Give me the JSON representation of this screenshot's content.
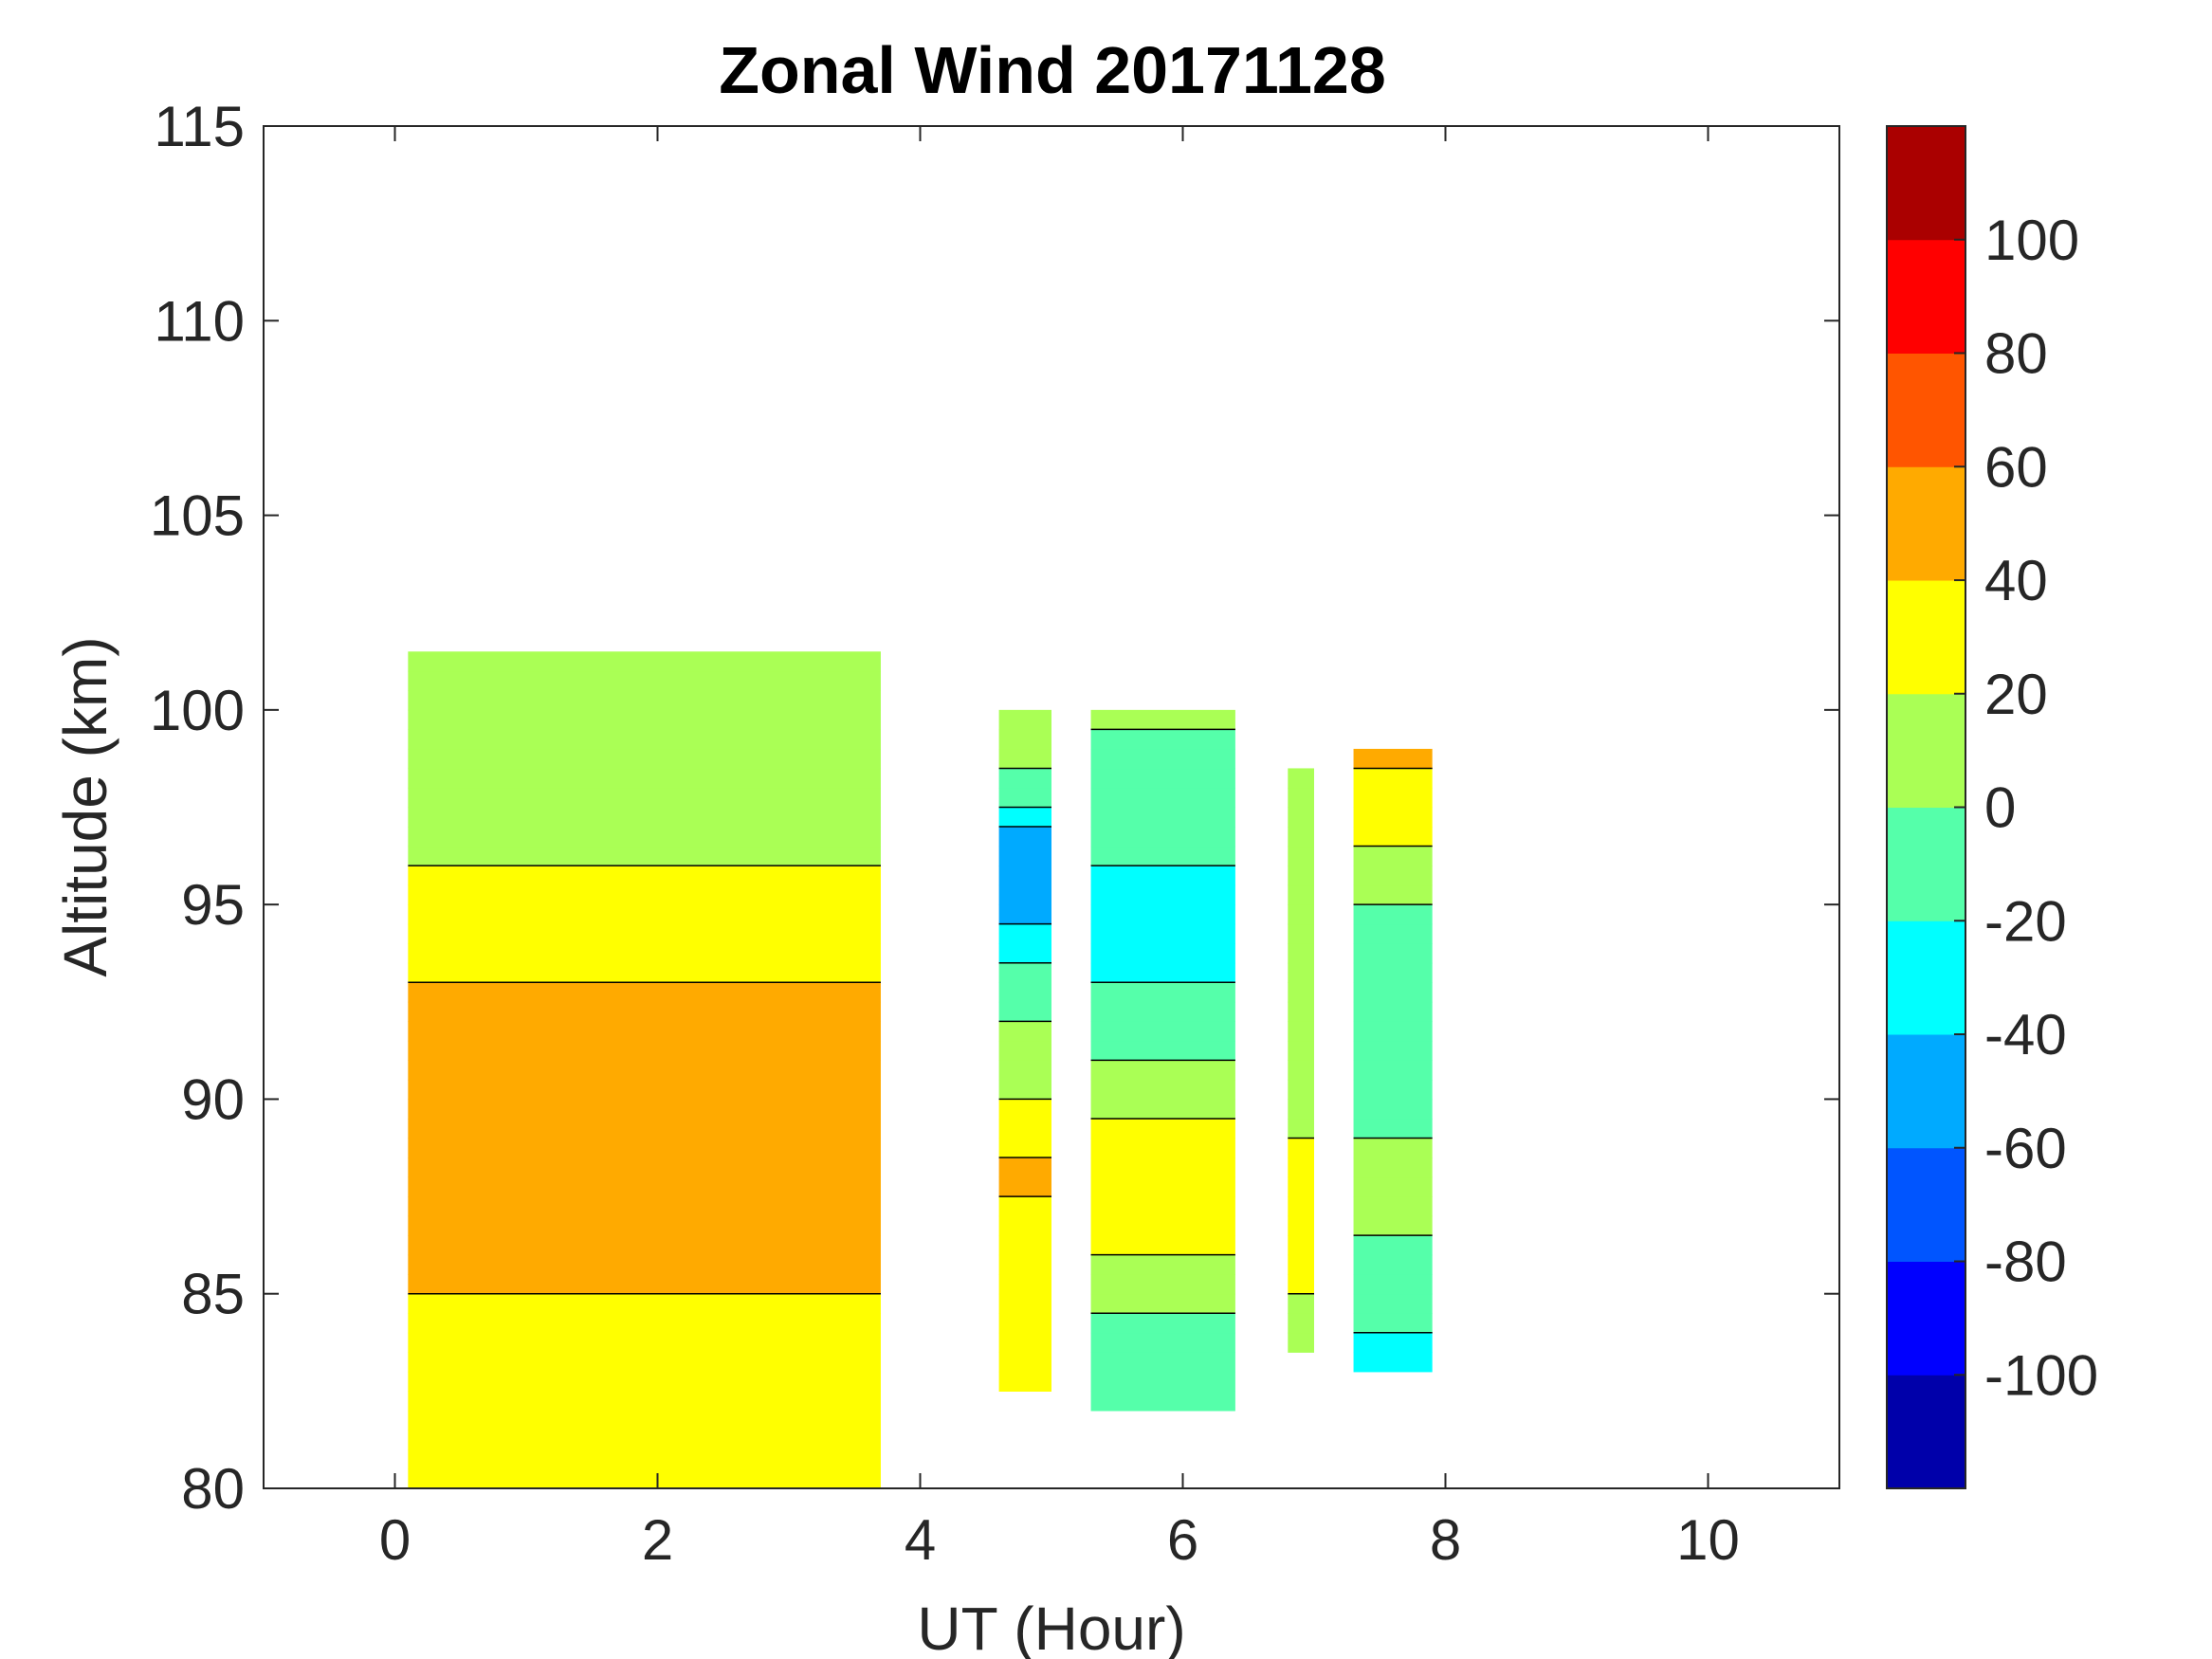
{
  "chart_data": {
    "type": "heatmap",
    "subtype": "filled-contour",
    "title": "Zonal Wind 20171128",
    "xlabel": "UT (Hour)",
    "ylabel": "Altitude (km)",
    "xlim": [
      -1,
      11
    ],
    "ylim": [
      80,
      115
    ],
    "xticks": [
      "0",
      "2",
      "4",
      "6",
      "8",
      "10"
    ],
    "yticks": [
      "80",
      "85",
      "90",
      "95",
      "100",
      "105",
      "110",
      "115"
    ],
    "colorbar": {
      "range": [
        -120,
        120
      ],
      "ticks": [
        "-100",
        "-80",
        "-60",
        "-40",
        "-20",
        "0",
        "20",
        "40",
        "60",
        "80",
        "100"
      ],
      "levels": [
        -120,
        -100,
        -80,
        -60,
        -40,
        -20,
        0,
        20,
        40,
        60,
        80,
        100,
        120
      ],
      "colors": [
        "#0000AA",
        "#0000FF",
        "#0055FF",
        "#00AAFF",
        "#00FFFF",
        "#55FFAA",
        "#AAFF55",
        "#FFFF00",
        "#FFAA00",
        "#FF5500",
        "#FF0000",
        "#AA0000"
      ]
    },
    "segments": [
      {
        "x_range": [
          0.1,
          3.7
        ],
        "alt_range": [
          80,
          101.5
        ],
        "profile": [
          [
            80,
            20
          ],
          [
            82,
            30
          ],
          [
            84,
            35
          ],
          [
            86,
            45
          ],
          [
            88,
            50
          ],
          [
            90,
            50
          ],
          [
            92,
            45
          ],
          [
            94,
            35
          ],
          [
            96,
            20
          ],
          [
            98,
            5
          ],
          [
            100,
            10
          ]
        ]
      },
      {
        "x_range": [
          4.6,
          5.0
        ],
        "alt_range": [
          82.5,
          100
        ],
        "profile": [
          [
            83,
            20
          ],
          [
            86,
            30
          ],
          [
            88,
            45
          ],
          [
            90,
            20
          ],
          [
            92,
            0
          ],
          [
            94,
            -30
          ],
          [
            96,
            -60
          ],
          [
            98,
            -10
          ],
          [
            100,
            20
          ]
        ]
      },
      {
        "x_range": [
          5.3,
          6.4
        ],
        "alt_range": [
          82,
          100
        ],
        "profile": [
          [
            83,
            -10
          ],
          [
            85,
            5
          ],
          [
            87,
            30
          ],
          [
            89,
            25
          ],
          [
            91,
            0
          ],
          [
            93,
            -20
          ],
          [
            95,
            -25
          ],
          [
            97,
            -15
          ],
          [
            99,
            -5
          ],
          [
            100,
            10
          ]
        ]
      },
      {
        "x_range": [
          6.8,
          7.0
        ],
        "alt_range": [
          83.5,
          98.5
        ],
        "profile": [
          [
            84,
            10
          ],
          [
            86,
            30
          ],
          [
            88,
            30
          ],
          [
            90,
            10
          ],
          [
            93,
            0
          ],
          [
            96,
            5
          ],
          [
            98.5,
            10
          ]
        ]
      },
      {
        "x_range": [
          7.3,
          7.9
        ],
        "alt_range": [
          83,
          99
        ],
        "profile": [
          [
            83,
            -30
          ],
          [
            85,
            -10
          ],
          [
            87,
            5
          ],
          [
            89,
            0
          ],
          [
            92,
            -10
          ],
          [
            95,
            0
          ],
          [
            97,
            30
          ],
          [
            99,
            45
          ]
        ]
      }
    ]
  }
}
